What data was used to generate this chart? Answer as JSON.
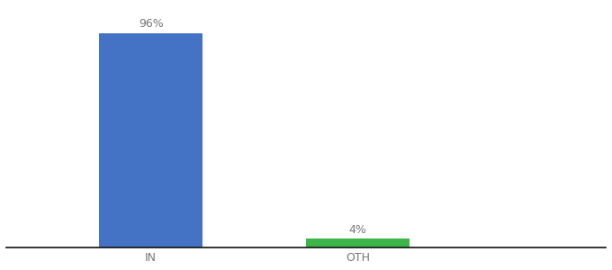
{
  "categories": [
    "IN",
    "OTH"
  ],
  "values": [
    96,
    4
  ],
  "bar_colors": [
    "#4472c4",
    "#3cb54a"
  ],
  "label_texts": [
    "96%",
    "4%"
  ],
  "background_color": "#ffffff",
  "ylim": [
    0,
    108
  ],
  "bar_width": 0.5,
  "x_positions": [
    1,
    2
  ],
  "xlim": [
    0.3,
    3.2
  ],
  "figsize": [
    6.8,
    3.0
  ],
  "dpi": 100,
  "label_fontsize": 9,
  "tick_fontsize": 9,
  "label_color": "#777777",
  "tick_color": "#777777",
  "spine_color": "#111111"
}
